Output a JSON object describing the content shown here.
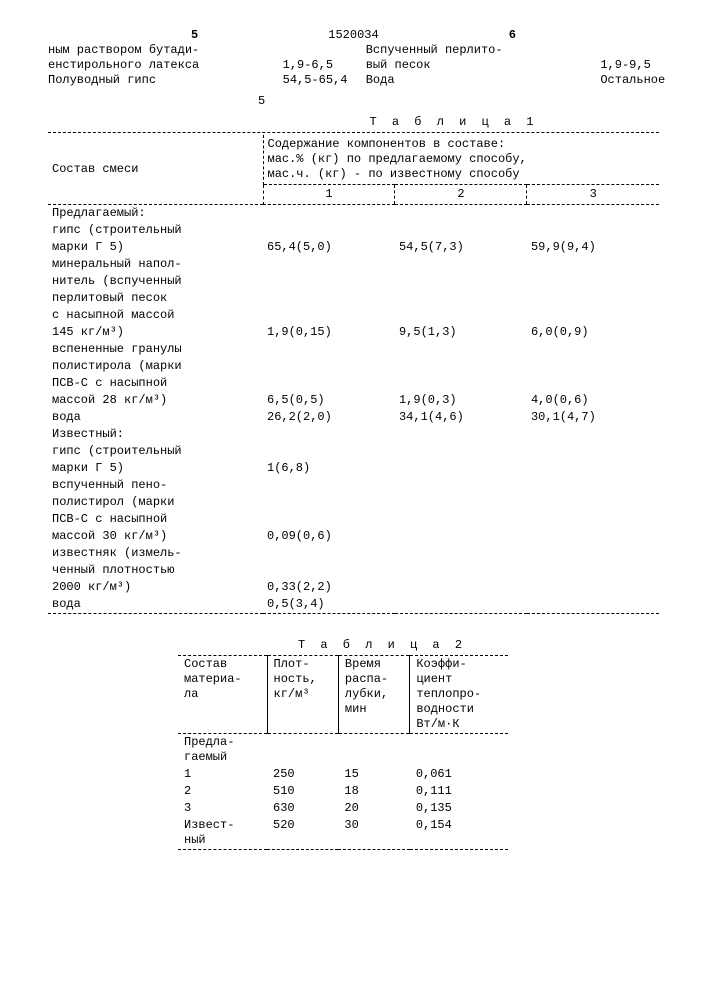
{
  "header": {
    "left_num": "5",
    "doc": "1520034",
    "right_num": "6",
    "left_lines": [
      "ным раствором бутади-",
      "енстирольного латекса",
      "Полуводный  гипс"
    ],
    "left_vals": [
      "",
      "1,9-6,5",
      "54,5-65,4"
    ],
    "right_lines": [
      "Вспученный перлито-",
      "вый песок",
      "Вода"
    ],
    "right_vals": [
      "",
      "1,9-9,5",
      "Остальное"
    ],
    "small5": "5"
  },
  "table1": {
    "title": "Т а б л и ц а 1",
    "mix_label": "Состав смеси",
    "head_line1": "Содержание компонентов в составе:",
    "head_line2": "мас.% (кг)  по предлагаемому способу,",
    "head_line3": "мас.ч. (кг) - по известному способу",
    "cols": [
      "1",
      "2",
      "3"
    ],
    "rows": [
      {
        "n": "Предлагаемый:",
        "v": [
          "",
          "",
          ""
        ]
      },
      {
        "n": "гипс (строительный",
        "v": [
          "",
          "",
          ""
        ]
      },
      {
        "n": "марки Г 5)",
        "v": [
          "65,4(5,0)",
          "54,5(7,3)",
          "59,9(9,4)"
        ]
      },
      {
        "n": "минеральный напол-",
        "v": [
          "",
          "",
          ""
        ]
      },
      {
        "n": "нитель (вспученный",
        "v": [
          "",
          "",
          ""
        ]
      },
      {
        "n": "перлитовый песок",
        "v": [
          "",
          "",
          ""
        ]
      },
      {
        "n": "с насыпной массой",
        "v": [
          "",
          "",
          ""
        ]
      },
      {
        "n": "145 кг/м³)",
        "v": [
          "1,9(0,15)",
          "9,5(1,3)",
          "6,0(0,9)"
        ]
      },
      {
        "n": "вспененные гранулы",
        "v": [
          "",
          "",
          ""
        ]
      },
      {
        "n": "полистирола (марки",
        "v": [
          "",
          "",
          ""
        ]
      },
      {
        "n": "ПСВ-С с насыпной",
        "v": [
          "",
          "",
          ""
        ]
      },
      {
        "n": "массой 28 кг/м³)",
        "v": [
          "6,5(0,5)",
          "1,9(0,3)",
          "4,0(0,6)"
        ]
      },
      {
        "n": "вода",
        "v": [
          "26,2(2,0)",
          "34,1(4,6)",
          "30,1(4,7)"
        ]
      },
      {
        "n": "Известный:",
        "v": [
          "",
          "",
          ""
        ]
      },
      {
        "n": "гипс (строительный",
        "v": [
          "",
          "",
          ""
        ]
      },
      {
        "n": "марки Г 5)",
        "v": [
          "1(6,8)",
          "",
          ""
        ]
      },
      {
        "n": "вспученный пено-",
        "v": [
          "",
          "",
          ""
        ]
      },
      {
        "n": "полистирол (марки",
        "v": [
          "",
          "",
          ""
        ]
      },
      {
        "n": "ПСВ-С с насыпной",
        "v": [
          "",
          "",
          ""
        ]
      },
      {
        "n": "массой 30 кг/м³)",
        "v": [
          "0,09(0,6)",
          "",
          ""
        ]
      },
      {
        "n": "известняк (измель-",
        "v": [
          "",
          "",
          ""
        ]
      },
      {
        "n": "ченный плотностью",
        "v": [
          "",
          "",
          ""
        ]
      },
      {
        "n": "2000 кг/м³)",
        "v": [
          "0,33(2,2)",
          "",
          ""
        ]
      },
      {
        "n": "вода",
        "v": [
          "0,5(3,4)",
          "",
          ""
        ]
      }
    ]
  },
  "table2": {
    "title": "Т а б л и ц а 2",
    "cols": [
      "Состав\nматериа-\nла",
      "Плот-\nность,\nкг/м³",
      "Время\nраспа-\nлубки,\nмин",
      "Коэффи-\nциент\nтеплопро-\nводности\nВт/м·К"
    ],
    "rows": [
      {
        "n": "Предла-\nгаемый",
        "v": [
          "",
          "",
          ""
        ]
      },
      {
        "n": "  1",
        "v": [
          "250",
          "15",
          "0,061"
        ]
      },
      {
        "n": "  2",
        "v": [
          "510",
          "18",
          "0,111"
        ]
      },
      {
        "n": "  3",
        "v": [
          "630",
          "20",
          "0,135"
        ]
      },
      {
        "n": "Извест-\nный",
        "v": [
          "520",
          "30",
          "0,154"
        ]
      }
    ]
  }
}
